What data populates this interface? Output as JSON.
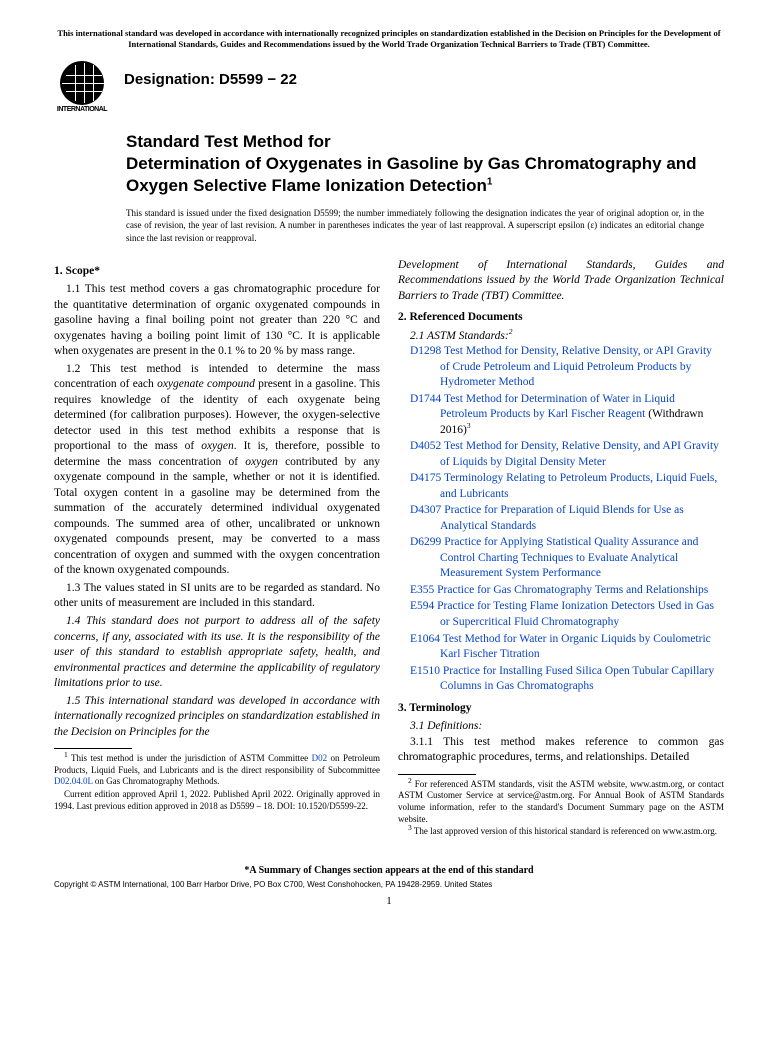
{
  "top_notice": "This international standard was developed in accordance with internationally recognized principles on standardization established in the Decision on Principles for the Development of International Standards, Guides and Recommendations issued by the World Trade Organization Technical Barriers to Trade (TBT) Committee.",
  "logo_text": "INTERNATIONAL",
  "designation": "Designation: D5599 − 22",
  "title_prefix": "Standard Test Method for",
  "title_main": "Determination of Oxygenates in Gasoline by Gas Chromatography and Oxygen Selective Flame Ionization Detection",
  "title_sup": "1",
  "issuance": "This standard is issued under the fixed designation D5599; the number immediately following the designation indicates the year of original adoption or, in the case of revision, the year of last revision. A number in parentheses indicates the year of last reapproval. A superscript epsilon (ε) indicates an editorial change since the last revision or reapproval.",
  "scope_head": "1. Scope*",
  "scope_1_1": "1.1 This test method covers a gas chromatographic procedure for the quantitative determination of organic oxygenated compounds in gasoline having a final boiling point not greater than 220 °C and oxygenates having a boiling point limit of 130 °C. It is applicable when oxygenates are present in the 0.1 % to 20 % by mass range.",
  "scope_1_2_a": "1.2 This test method is intended to determine the mass concentration of each ",
  "scope_1_2_b": "oxygenate compound",
  "scope_1_2_c": " present in a gasoline. This requires knowledge of the identity of each oxygenate being determined (for calibration purposes). However, the oxygen-selective detector used in this test method exhibits a response that is proportional to the mass of ",
  "scope_1_2_d": "oxygen",
  "scope_1_2_e": ". It is, therefore, possible to determine the mass concentration of ",
  "scope_1_2_f": "oxygen",
  "scope_1_2_g": " contributed by any oxygenate compound in the sample, whether or not it is identified. Total oxygen content in a gasoline may be determined from the summation of the accurately determined individual oxygenated compounds. The summed area of other, uncalibrated or unknown oxygenated compounds present, may be converted to a mass concentration of oxygen and summed with the oxygen concentration of the known oxygenated compounds.",
  "scope_1_3": "1.3 The values stated in SI units are to be regarded as standard. No other units of measurement are included in this standard.",
  "scope_1_4": "1.4 This standard does not purport to address all of the safety concerns, if any, associated with its use. It is the responsibility of the user of this standard to establish appropriate safety, health, and environmental practices and determine the applicability of regulatory limitations prior to use.",
  "scope_1_5": "1.5 This international standard was developed in accordance with internationally recognized principles on standardization established in the Decision on Principles for the",
  "scope_1_5_cont": "Development of International Standards, Guides and Recommendations issued by the World Trade Organization Technical Barriers to Trade (TBT) Committee.",
  "ref_head": "2. Referenced Documents",
  "ref_sub": "2.1 ASTM Standards:",
  "ref_sup": "2",
  "refs": [
    {
      "code": "D1298",
      "desc": "Test Method for Density, Relative Density, or API Gravity of Crude Petroleum and Liquid Petroleum Products by Hydrometer Method",
      "suffix": ""
    },
    {
      "code": "D1744",
      "desc": "Test Method for Determination of Water in Liquid Petroleum Products by Karl Fischer Reagent",
      "suffix": " (Withdrawn 2016)",
      "sup": "3"
    },
    {
      "code": "D4052",
      "desc": "Test Method for Density, Relative Density, and API Gravity of Liquids by Digital Density Meter",
      "suffix": ""
    },
    {
      "code": "D4175",
      "desc": "Terminology Relating to Petroleum Products, Liquid Fuels, and Lubricants",
      "suffix": ""
    },
    {
      "code": "D4307",
      "desc": "Practice for Preparation of Liquid Blends for Use as Analytical Standards",
      "suffix": ""
    },
    {
      "code": "D6299",
      "desc": "Practice for Applying Statistical Quality Assurance and Control Charting Techniques to Evaluate Analytical Measurement System Performance",
      "suffix": ""
    },
    {
      "code": "E355",
      "desc": "Practice for Gas Chromatography Terms and Relationships",
      "suffix": ""
    },
    {
      "code": "E594",
      "desc": "Practice for Testing Flame Ionization Detectors Used in Gas or Supercritical Fluid Chromatography",
      "suffix": ""
    },
    {
      "code": "E1064",
      "desc": "Test Method for Water in Organic Liquids by Coulometric Karl Fischer Titration",
      "suffix": ""
    },
    {
      "code": "E1510",
      "desc": "Practice for Installing Fused Silica Open Tubular Capillary Columns in Gas Chromatographs",
      "suffix": ""
    }
  ],
  "term_head": "3. Terminology",
  "term_sub": "3.1 Definitions:",
  "term_3_1_1": "3.1.1 This test method makes reference to common gas chromatographic procedures, terms, and relationships. Detailed",
  "fn1_a": "This test method is under the jurisdiction of ASTM Committee ",
  "fn1_link1": "D02",
  "fn1_b": " on Petroleum Products, Liquid Fuels, and Lubricants and is the direct responsibility of Subcommittee ",
  "fn1_link2": "D02.04.0L",
  "fn1_c": " on Gas Chromatography Methods.",
  "fn1_2": "Current edition approved April 1, 2022. Published April 2022. Originally approved in 1994. Last previous edition approved in 2018 as D5599 – 18. DOI: 10.1520/D5599-22.",
  "fn2": "For referenced ASTM standards, visit the ASTM website, www.astm.org, or contact ASTM Customer Service at service@astm.org. For Annual Book of ASTM Standards volume information, refer to the standard's Document Summary page on the ASTM website.",
  "fn3": "The last approved version of this historical standard is referenced on www.astm.org.",
  "bottom_notice": "*A Summary of Changes section appears at the end of this standard",
  "copyright": "Copyright © ASTM International, 100 Barr Harbor Drive, PO Box C700, West Conshohocken, PA 19428-2959. United States",
  "pagenum": "1",
  "colors": {
    "link": "#0845c4",
    "text": "#000000",
    "bg": "#ffffff"
  }
}
